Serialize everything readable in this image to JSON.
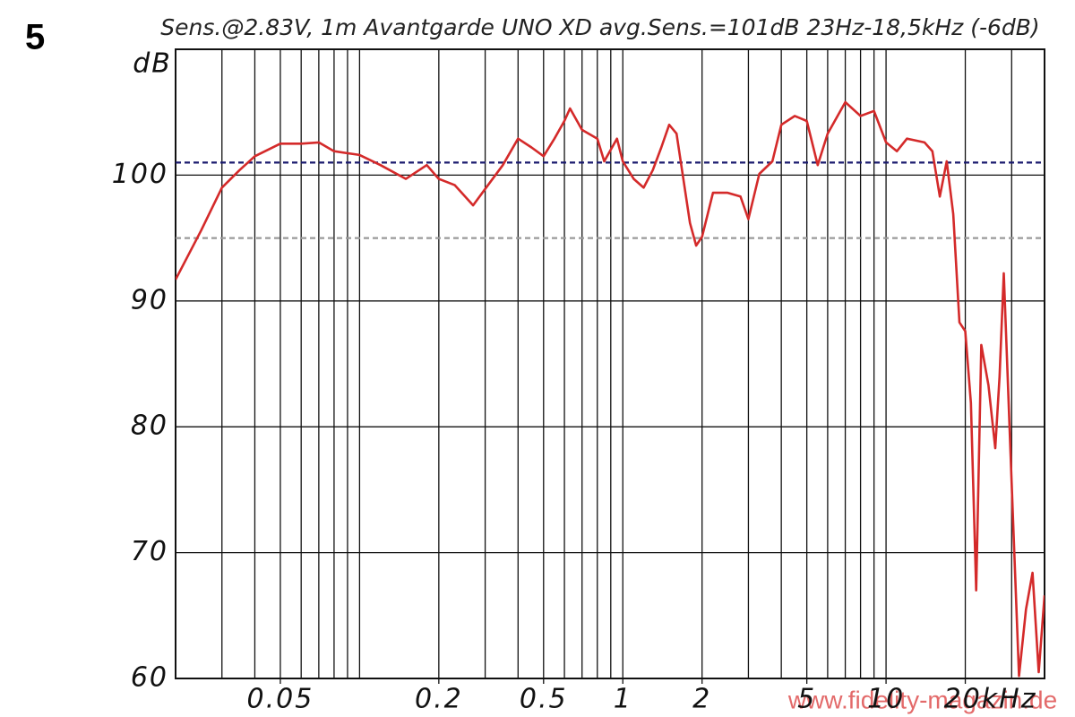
{
  "chart_data": {
    "type": "line",
    "figure_number": "5",
    "title": "Sens.@2.83V, 1m Avantgarde UNO XD avg.Sens.=101dB 23Hz-18,5kHz (-6dB)",
    "y_label": "dB",
    "watermark": "www.fidelity-magazin.de",
    "x_scale": "log",
    "xlim": [
      0.02,
      40
    ],
    "ylim": [
      60,
      110
    ],
    "xticks": [
      0.05,
      0.2,
      0.5,
      1,
      2,
      5,
      10,
      {
        "value": 20,
        "label": "20kHz"
      }
    ],
    "xminor_ticks": [
      0.03,
      0.04,
      0.05,
      0.06,
      0.07,
      0.08,
      0.09,
      0.1,
      0.2,
      0.3,
      0.4,
      0.5,
      0.6,
      0.7,
      0.8,
      0.9,
      1,
      2,
      3,
      4,
      5,
      6,
      7,
      8,
      9,
      10,
      20,
      30
    ],
    "yticks": [
      60,
      70,
      80,
      90,
      100
    ],
    "grid": true,
    "reference_lines": [
      {
        "value": 101,
        "color": "#1a1a6e"
      },
      {
        "value": 95,
        "color": "#9a9a9a"
      }
    ],
    "x": [
      0.02,
      0.025,
      0.03,
      0.035,
      0.04,
      0.05,
      0.06,
      0.07,
      0.08,
      0.1,
      0.12,
      0.15,
      0.18,
      0.2,
      0.23,
      0.27,
      0.3,
      0.35,
      0.4,
      0.45,
      0.5,
      0.55,
      0.6,
      0.63,
      0.7,
      0.8,
      0.85,
      0.95,
      1.0,
      1.1,
      1.2,
      1.3,
      1.4,
      1.5,
      1.6,
      1.8,
      1.9,
      2.0,
      2.2,
      2.5,
      2.8,
      3.0,
      3.3,
      3.7,
      4.0,
      4.5,
      5.0,
      5.5,
      6.0,
      7.0,
      8.0,
      9.0,
      10,
      11,
      12,
      14,
      15,
      16,
      17,
      18,
      19,
      20,
      21,
      22,
      23,
      24.5,
      26,
      27,
      28,
      30,
      32,
      34,
      36,
      38,
      40
    ],
    "series": [
      {
        "color": "#d42a2a",
        "values": [
          91.7,
          95.6,
          99.0,
          100.4,
          101.5,
          102.5,
          102.5,
          102.6,
          101.9,
          101.6,
          100.8,
          99.7,
          100.8,
          99.7,
          99.2,
          97.6,
          98.9,
          100.8,
          102.9,
          102.2,
          101.5,
          102.9,
          104.3,
          105.3,
          103.6,
          102.9,
          101.1,
          102.9,
          101.1,
          99.7,
          99.0,
          100.4,
          102.2,
          104.0,
          103.3,
          96.2,
          94.4,
          95.1,
          98.6,
          98.6,
          98.3,
          96.5,
          100.1,
          101.1,
          104.0,
          104.7,
          104.3,
          100.8,
          103.3,
          105.8,
          104.7,
          105.1,
          102.6,
          101.9,
          102.9,
          102.6,
          101.9,
          98.3,
          101.1,
          96.9,
          88.3,
          87.6,
          81.9,
          67.0,
          86.5,
          83.3,
          78.3,
          84.0,
          92.2,
          75.5,
          60.2,
          65.5,
          68.4,
          60.5,
          66.6
        ]
      }
    ]
  }
}
